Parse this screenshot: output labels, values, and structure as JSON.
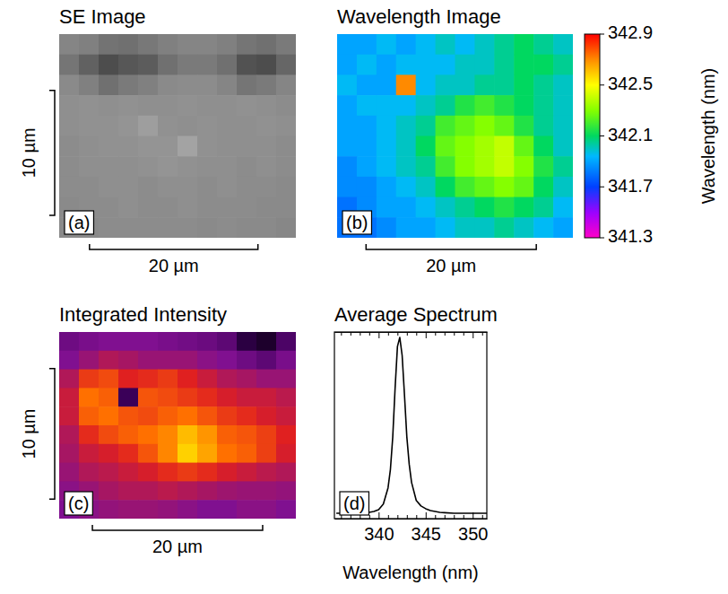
{
  "chart_data": [
    {
      "type": "heatmap",
      "title": "SE Image",
      "panel_label": "(a)",
      "tick_labels": false,
      "xlim": [
        0,
        28.1
      ],
      "ylim": [
        0,
        16.3
      ],
      "zlim": [
        0,
        1
      ],
      "scale_bars": [
        {
          "axis": "y",
          "from": 4.5,
          "to": 14.5,
          "label": "10 µm"
        },
        {
          "axis": "x",
          "from": 3.6,
          "to": 23.6,
          "label": "20 µm"
        }
      ],
      "cells": [
        [
          0.52,
          0.5,
          0.45,
          0.44,
          0.47,
          0.5,
          0.52,
          0.52,
          0.5,
          0.46,
          0.44,
          0.48
        ],
        [
          0.46,
          0.38,
          0.3,
          0.34,
          0.36,
          0.44,
          0.48,
          0.48,
          0.44,
          0.32,
          0.3,
          0.4
        ],
        [
          0.54,
          0.5,
          0.44,
          0.48,
          0.5,
          0.54,
          0.55,
          0.55,
          0.52,
          0.46,
          0.48,
          0.52
        ],
        [
          0.56,
          0.57,
          0.56,
          0.57,
          0.56,
          0.56,
          0.57,
          0.56,
          0.56,
          0.57,
          0.56,
          0.55
        ],
        [
          0.56,
          0.57,
          0.57,
          0.58,
          0.62,
          0.57,
          0.56,
          0.57,
          0.56,
          0.56,
          0.57,
          0.56
        ],
        [
          0.55,
          0.56,
          0.57,
          0.57,
          0.58,
          0.58,
          0.64,
          0.57,
          0.56,
          0.56,
          0.56,
          0.55
        ],
        [
          0.55,
          0.56,
          0.56,
          0.56,
          0.57,
          0.58,
          0.57,
          0.56,
          0.56,
          0.55,
          0.56,
          0.55
        ],
        [
          0.55,
          0.55,
          0.56,
          0.56,
          0.55,
          0.56,
          0.56,
          0.55,
          0.56,
          0.55,
          0.55,
          0.54
        ],
        [
          0.54,
          0.55,
          0.55,
          0.56,
          0.55,
          0.55,
          0.56,
          0.55,
          0.55,
          0.55,
          0.54,
          0.54
        ],
        [
          0.54,
          0.54,
          0.55,
          0.55,
          0.55,
          0.55,
          0.55,
          0.54,
          0.55,
          0.54,
          0.54,
          0.53
        ]
      ]
    },
    {
      "type": "heatmap",
      "title": "Wavelength Image",
      "panel_label": "(b)",
      "tick_labels": false,
      "xlim": [
        0,
        27.7
      ],
      "ylim": [
        0,
        16.3
      ],
      "zlim": [
        341.3,
        342.9
      ],
      "zticks": [
        341.3,
        341.7,
        342.1,
        342.5,
        342.9
      ],
      "colorbar_label": "Wavelength (nm)",
      "scale_bars": [
        {
          "axis": "x",
          "from": 3.4,
          "to": 23.4,
          "label": "20 µm"
        }
      ],
      "cells": [
        [
          341.9,
          341.9,
          341.95,
          341.9,
          341.95,
          342.0,
          341.95,
          342.0,
          342.05,
          342.1,
          342.05,
          342.0
        ],
        [
          341.9,
          341.95,
          341.9,
          341.95,
          341.95,
          341.95,
          342.0,
          342.0,
          342.05,
          342.1,
          342.1,
          342.05
        ],
        [
          341.95,
          341.9,
          341.9,
          342.7,
          341.95,
          342.0,
          342.0,
          342.05,
          342.05,
          342.1,
          342.05,
          342.0
        ],
        [
          341.9,
          341.95,
          341.95,
          341.95,
          342.0,
          342.05,
          342.15,
          342.2,
          342.15,
          342.1,
          342.05,
          342.0
        ],
        [
          341.9,
          341.9,
          341.95,
          342.0,
          342.05,
          342.2,
          342.25,
          342.3,
          342.25,
          342.15,
          342.05,
          342.0
        ],
        [
          341.9,
          341.9,
          341.95,
          342.0,
          342.1,
          342.25,
          342.3,
          342.35,
          342.4,
          342.25,
          342.1,
          342.0
        ],
        [
          341.85,
          341.9,
          341.95,
          342.0,
          342.05,
          342.2,
          342.3,
          342.35,
          342.4,
          342.3,
          342.15,
          342.05
        ],
        [
          341.85,
          341.85,
          341.9,
          341.95,
          342.0,
          342.1,
          342.2,
          342.25,
          342.3,
          342.25,
          342.1,
          342.0
        ],
        [
          341.8,
          341.85,
          341.9,
          341.9,
          341.95,
          342.0,
          342.05,
          342.1,
          342.15,
          342.1,
          342.05,
          341.95
        ],
        [
          341.8,
          341.8,
          341.85,
          341.9,
          341.9,
          341.95,
          342.0,
          342.0,
          342.05,
          342.0,
          341.95,
          341.9
        ]
      ]
    },
    {
      "type": "heatmap",
      "title": "Integrated Intensity",
      "panel_label": "(c)",
      "tick_labels": false,
      "xlim": [
        0,
        27.8
      ],
      "ylim": [
        0,
        14.3
      ],
      "zlim": [
        0,
        1
      ],
      "scale_bars": [
        {
          "axis": "y",
          "from": 2.8,
          "to": 12.8,
          "label": "10 µm"
        },
        {
          "axis": "x",
          "from": 3.9,
          "to": 23.9,
          "label": "20 µm"
        }
      ],
      "cells": [
        [
          0.35,
          0.38,
          0.4,
          0.4,
          0.4,
          0.38,
          0.36,
          0.34,
          0.3,
          0.15,
          0.1,
          0.25
        ],
        [
          0.4,
          0.45,
          0.5,
          0.48,
          0.45,
          0.45,
          0.45,
          0.42,
          0.4,
          0.35,
          0.3,
          0.38
        ],
        [
          0.5,
          0.65,
          0.68,
          0.6,
          0.62,
          0.65,
          0.6,
          0.55,
          0.5,
          0.48,
          0.45,
          0.45
        ],
        [
          0.55,
          0.75,
          0.72,
          0.2,
          0.7,
          0.68,
          0.65,
          0.62,
          0.58,
          0.55,
          0.55,
          0.52
        ],
        [
          0.55,
          0.72,
          0.75,
          0.7,
          0.68,
          0.72,
          0.75,
          0.7,
          0.65,
          0.62,
          0.58,
          0.55
        ],
        [
          0.5,
          0.62,
          0.68,
          0.72,
          0.75,
          0.78,
          0.85,
          0.8,
          0.72,
          0.7,
          0.66,
          0.6
        ],
        [
          0.48,
          0.55,
          0.58,
          0.62,
          0.7,
          0.78,
          0.88,
          0.82,
          0.75,
          0.72,
          0.66,
          0.58
        ],
        [
          0.45,
          0.5,
          0.52,
          0.55,
          0.58,
          0.62,
          0.65,
          0.62,
          0.58,
          0.55,
          0.52,
          0.5
        ],
        [
          0.42,
          0.45,
          0.48,
          0.5,
          0.5,
          0.52,
          0.5,
          0.48,
          0.46,
          0.45,
          0.45,
          0.44
        ],
        [
          0.4,
          0.42,
          0.44,
          0.45,
          0.45,
          0.44,
          0.42,
          0.4,
          0.4,
          0.42,
          0.42,
          0.4
        ]
      ]
    },
    {
      "type": "line",
      "title": "Average Spectrum",
      "panel_label": "(d)",
      "xlabel": "Wavelength (nm)",
      "tick_labels": "x",
      "color": "#000000",
      "xlim": [
        335.3,
        351.5
      ],
      "ylim": [
        0,
        1.03
      ],
      "xticks": [
        340,
        345,
        350
      ],
      "xticks_minor": [
        336,
        337,
        338,
        339,
        341,
        342,
        343,
        344,
        346,
        347,
        348,
        349,
        351
      ],
      "x": [
        335.5,
        336,
        336.5,
        337,
        337.5,
        338,
        338.5,
        339,
        339.5,
        340,
        340.5,
        341,
        341.25,
        341.5,
        341.75,
        342,
        342.25,
        342.5,
        342.75,
        343,
        343.25,
        343.5,
        344,
        344.5,
        345,
        345.5,
        346,
        346.5,
        347,
        348,
        349,
        350,
        351,
        351.5
      ],
      "values": [
        0.03,
        0.03,
        0.03,
        0.03,
        0.03,
        0.03,
        0.03,
        0.035,
        0.04,
        0.05,
        0.08,
        0.17,
        0.27,
        0.45,
        0.72,
        0.95,
        1.0,
        0.9,
        0.68,
        0.45,
        0.3,
        0.2,
        0.1,
        0.07,
        0.055,
        0.045,
        0.04,
        0.035,
        0.033,
        0.03,
        0.03,
        0.03,
        0.03,
        0.03
      ]
    }
  ]
}
